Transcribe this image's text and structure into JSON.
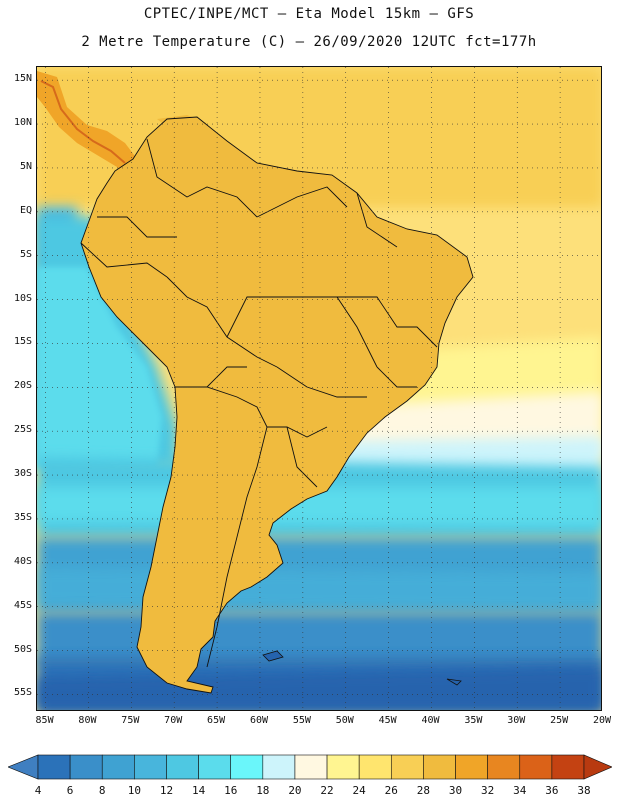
{
  "header": {
    "title_line1": "CPTEC/INPE/MCT –  Eta Model 15km – GFS",
    "title_line2": "2 Metre Temperature (C) – 26/09/2020 12UTC fct=177h"
  },
  "map": {
    "lat_labels": [
      "15N",
      "10N",
      "5N",
      "EQ",
      "5S",
      "10S",
      "15S",
      "20S",
      "25S",
      "30S",
      "35S",
      "40S",
      "45S",
      "50S",
      "55S"
    ],
    "lon_labels": [
      "85W",
      "80W",
      "75W",
      "70W",
      "65W",
      "60W",
      "55W",
      "50W",
      "45W",
      "40W",
      "35W",
      "30W",
      "25W",
      "20W"
    ],
    "lon_range": [
      -86,
      -20
    ],
    "lat_range": [
      -57,
      16.5
    ]
  },
  "legend": {
    "labels": [
      "4",
      "6",
      "8",
      "10",
      "12",
      "14",
      "16",
      "18",
      "20",
      "22",
      "24",
      "26",
      "28",
      "30",
      "32",
      "34",
      "36",
      "38"
    ],
    "colors": [
      "#3f7fc1",
      "#2b72b9",
      "#3a8fc9",
      "#3fa2d2",
      "#48b5dc",
      "#4ec8e2",
      "#5bdcec",
      "#6af6fa",
      "#cdf4fb",
      "#fff8e1",
      "#fff591",
      "#ffe56e",
      "#f8cf55",
      "#f0bb3e",
      "#f0a528",
      "#e88620",
      "#db6218",
      "#c44212",
      "#b83a10"
    ]
  }
}
